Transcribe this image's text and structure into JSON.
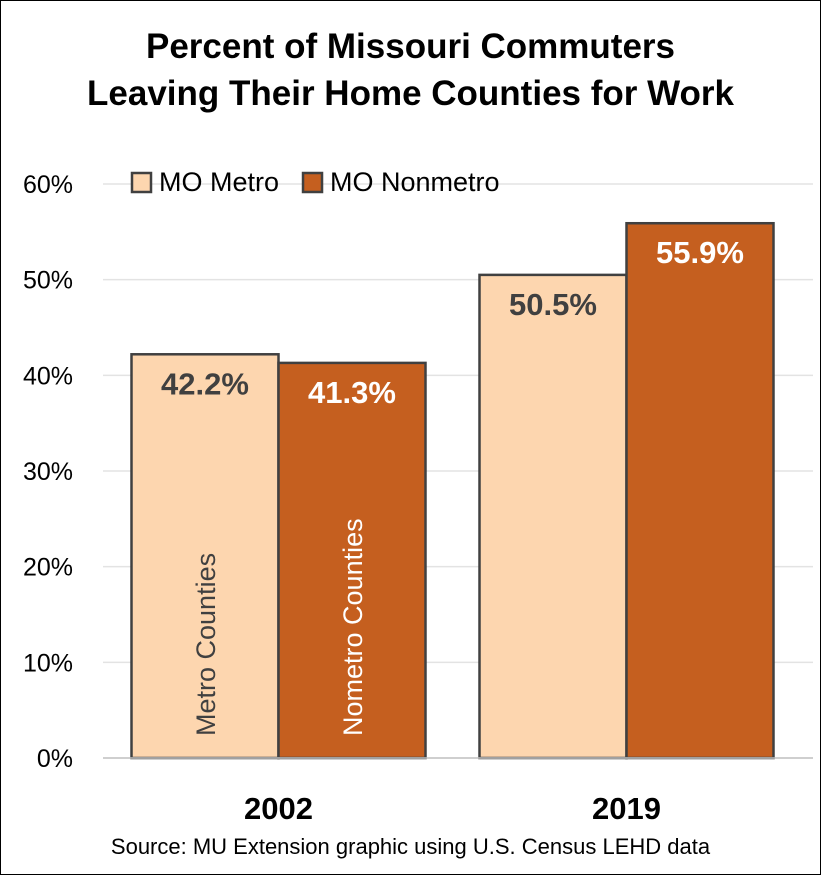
{
  "chart_data": {
    "type": "bar",
    "title_lines": [
      "Percent of Missouri Commuters",
      "Leaving Their Home Counties for Work"
    ],
    "categories": [
      "2002",
      "2019"
    ],
    "series": [
      {
        "name": "MO Metro",
        "values": [
          42.2,
          50.5
        ],
        "labels": [
          "42.2%",
          "50.5%"
        ],
        "color": "#FDD6AF",
        "label_color": "#404040",
        "inside_label": "Metro Counties"
      },
      {
        "name": "MO Nonmetro",
        "values": [
          41.3,
          55.9
        ],
        "labels": [
          "41.3%",
          "55.9%"
        ],
        "color": "#C55F1F",
        "label_color": "#FFFFFF",
        "inside_label": "Nometro Counties"
      }
    ],
    "ylim": [
      0,
      60
    ],
    "yticks": [
      0,
      10,
      20,
      30,
      40,
      50,
      60
    ],
    "ytick_labels": [
      "0%",
      "10%",
      "20%",
      "30%",
      "40%",
      "50%",
      "60%"
    ],
    "grid": true,
    "legend_position": "top-left",
    "source": "Source: MU Extension graphic using U.S. Census LEHD data",
    "bar_border_color": "#404040"
  }
}
